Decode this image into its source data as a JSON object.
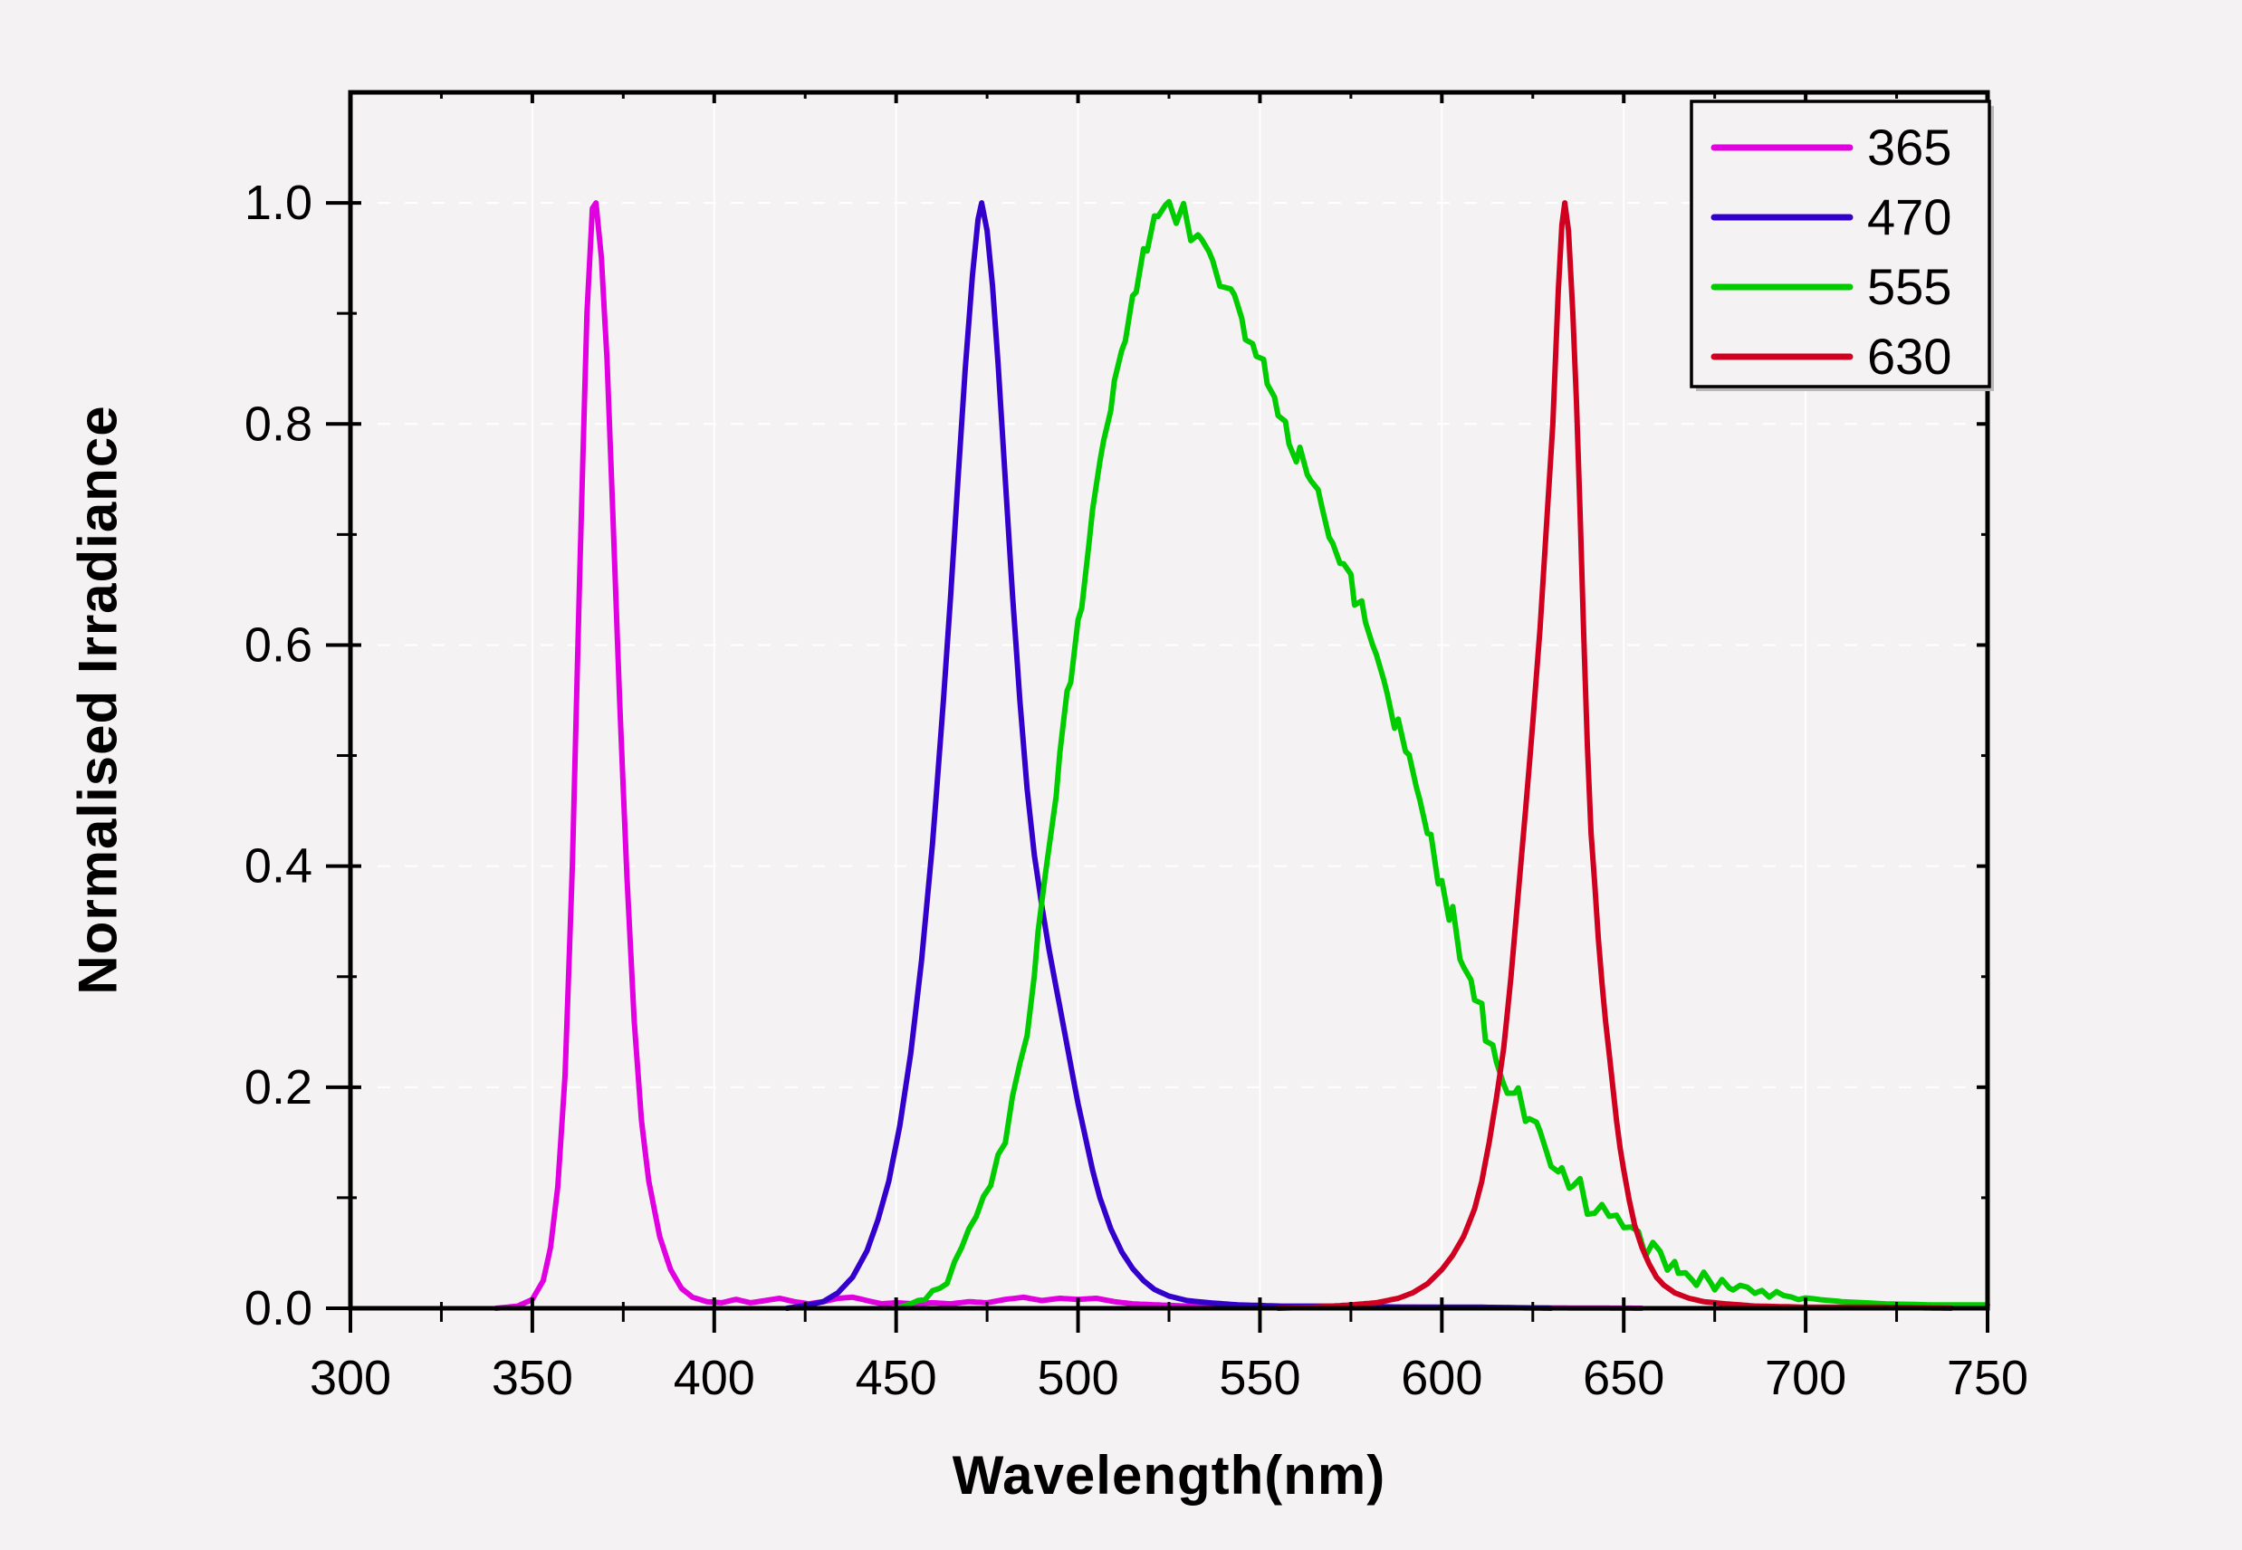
{
  "chart_data": {
    "type": "line",
    "title": "",
    "xlabel": "Wavelength(nm)",
    "ylabel": "Normalised Irradiance",
    "xlim": [
      300,
      750
    ],
    "ylim": [
      0,
      1.1
    ],
    "x_ticks": [
      300,
      350,
      400,
      450,
      500,
      550,
      600,
      650,
      700,
      750
    ],
    "x_minor_step": 25,
    "y_ticks": [
      "0.0",
      "0.2",
      "0.4",
      "0.6",
      "0.8",
      "1.0"
    ],
    "y_tick_values": [
      0.0,
      0.2,
      0.4,
      0.6,
      0.8,
      1.0
    ],
    "y_minor_step": 0.1,
    "background_color": "#f4f2f3",
    "frame_color": "#000000",
    "grid": {
      "vertical": "solid",
      "horizontal": "dashed",
      "color": "#ffffff"
    },
    "legend": {
      "position": "top-right",
      "entries": [
        {
          "label": "365",
          "color": "#e000e0"
        },
        {
          "label": "470",
          "color": "#3300cc"
        },
        {
          "label": "555",
          "color": "#00cc00"
        },
        {
          "label": "630",
          "color": "#d00020"
        }
      ]
    },
    "series": [
      {
        "name": "365",
        "color": "#e000e0",
        "width": 6,
        "jitter": 0,
        "points": [
          [
            340,
            0
          ],
          [
            346,
            0.002
          ],
          [
            350,
            0.008
          ],
          [
            353,
            0.025
          ],
          [
            355,
            0.055
          ],
          [
            357,
            0.11
          ],
          [
            359,
            0.21
          ],
          [
            361,
            0.4
          ],
          [
            363,
            0.66
          ],
          [
            365,
            0.9
          ],
          [
            366.5,
            0.995
          ],
          [
            367.5,
            1.0
          ],
          [
            369,
            0.95
          ],
          [
            370.5,
            0.86
          ],
          [
            372,
            0.73
          ],
          [
            374,
            0.55
          ],
          [
            376,
            0.39
          ],
          [
            378,
            0.26
          ],
          [
            380,
            0.17
          ],
          [
            382,
            0.115
          ],
          [
            385,
            0.065
          ],
          [
            388,
            0.035
          ],
          [
            391,
            0.018
          ],
          [
            394,
            0.01
          ],
          [
            398,
            0.006
          ],
          [
            402,
            0.005
          ],
          [
            406,
            0.008
          ],
          [
            410,
            0.005
          ],
          [
            414,
            0.007
          ],
          [
            418,
            0.009
          ],
          [
            422,
            0.006
          ],
          [
            426,
            0.004
          ],
          [
            430,
            0.006
          ],
          [
            434,
            0.009
          ],
          [
            438,
            0.01
          ],
          [
            442,
            0.007
          ],
          [
            446,
            0.004
          ],
          [
            450,
            0.005
          ],
          [
            455,
            0.004
          ],
          [
            460,
            0.005
          ],
          [
            465,
            0.004
          ],
          [
            470,
            0.006
          ],
          [
            475,
            0.005
          ],
          [
            480,
            0.008
          ],
          [
            485,
            0.01
          ],
          [
            490,
            0.007
          ],
          [
            495,
            0.009
          ],
          [
            500,
            0.008
          ],
          [
            505,
            0.009
          ],
          [
            510,
            0.006
          ],
          [
            515,
            0.004
          ],
          [
            522,
            0.003
          ],
          [
            530,
            0.002
          ],
          [
            542,
            0.002
          ],
          [
            556,
            0.001
          ],
          [
            572,
            0.001
          ],
          [
            590,
            0.001
          ],
          [
            620,
            0.0005
          ],
          [
            655,
            0
          ]
        ]
      },
      {
        "name": "470",
        "color": "#3300cc",
        "width": 6,
        "jitter": 0,
        "points": [
          [
            420,
            0
          ],
          [
            426,
            0.003
          ],
          [
            430,
            0.006
          ],
          [
            434,
            0.014
          ],
          [
            438,
            0.028
          ],
          [
            442,
            0.052
          ],
          [
            445,
            0.08
          ],
          [
            448,
            0.115
          ],
          [
            451,
            0.165
          ],
          [
            454,
            0.23
          ],
          [
            457,
            0.315
          ],
          [
            460,
            0.42
          ],
          [
            463,
            0.55
          ],
          [
            465,
            0.645
          ],
          [
            467,
            0.75
          ],
          [
            469,
            0.85
          ],
          [
            471,
            0.935
          ],
          [
            472.5,
            0.985
          ],
          [
            473.5,
            1.0
          ],
          [
            475,
            0.975
          ],
          [
            476.5,
            0.925
          ],
          [
            478,
            0.855
          ],
          [
            480,
            0.75
          ],
          [
            482,
            0.645
          ],
          [
            484,
            0.55
          ],
          [
            486,
            0.47
          ],
          [
            488,
            0.41
          ],
          [
            490,
            0.365
          ],
          [
            492,
            0.325
          ],
          [
            494,
            0.29
          ],
          [
            496,
            0.255
          ],
          [
            498,
            0.22
          ],
          [
            500,
            0.185
          ],
          [
            502,
            0.155
          ],
          [
            504,
            0.125
          ],
          [
            506,
            0.1
          ],
          [
            509,
            0.072
          ],
          [
            512,
            0.051
          ],
          [
            515,
            0.036
          ],
          [
            518,
            0.025
          ],
          [
            521,
            0.017
          ],
          [
            525,
            0.011
          ],
          [
            530,
            0.007
          ],
          [
            536,
            0.005
          ],
          [
            544,
            0.003
          ],
          [
            556,
            0.002
          ],
          [
            572,
            0.002
          ],
          [
            590,
            0.001
          ],
          [
            610,
            0.001
          ],
          [
            630,
            0
          ]
        ]
      },
      {
        "name": "555",
        "color": "#00cc00",
        "width": 6,
        "jitter": 0.014,
        "points": [
          [
            450,
            0
          ],
          [
            454,
            0.004
          ],
          [
            458,
            0.01
          ],
          [
            462,
            0.02
          ],
          [
            466,
            0.038
          ],
          [
            470,
            0.062
          ],
          [
            474,
            0.095
          ],
          [
            478,
            0.13
          ],
          [
            482,
            0.185
          ],
          [
            486,
            0.26
          ],
          [
            489,
            0.33
          ],
          [
            492,
            0.42
          ],
          [
            495,
            0.5
          ],
          [
            498,
            0.575
          ],
          [
            501,
            0.645
          ],
          [
            504,
            0.715
          ],
          [
            507,
            0.775
          ],
          [
            510,
            0.835
          ],
          [
            513,
            0.885
          ],
          [
            516,
            0.93
          ],
          [
            519,
            0.97
          ],
          [
            522,
            0.995
          ],
          [
            525,
            1.0
          ],
          [
            527,
            0.985
          ],
          [
            529,
            0.995
          ],
          [
            531,
            0.975
          ],
          [
            534,
            0.965
          ],
          [
            537,
            0.945
          ],
          [
            540,
            0.925
          ],
          [
            543,
            0.915
          ],
          [
            546,
            0.89
          ],
          [
            549,
            0.865
          ],
          [
            552,
            0.845
          ],
          [
            555,
            0.82
          ],
          [
            558,
            0.79
          ],
          [
            561,
            0.77
          ],
          [
            564,
            0.745
          ],
          [
            567,
            0.72
          ],
          [
            570,
            0.7
          ],
          [
            573,
            0.675
          ],
          [
            576,
            0.65
          ],
          [
            579,
            0.625
          ],
          [
            582,
            0.6
          ],
          [
            585,
            0.565
          ],
          [
            588,
            0.525
          ],
          [
            591,
            0.49
          ],
          [
            594,
            0.455
          ],
          [
            597,
            0.42
          ],
          [
            600,
            0.385
          ],
          [
            603,
            0.35
          ],
          [
            606,
            0.315
          ],
          [
            609,
            0.285
          ],
          [
            612,
            0.255
          ],
          [
            615,
            0.225
          ],
          [
            618,
            0.205
          ],
          [
            621,
            0.19
          ],
          [
            624,
            0.175
          ],
          [
            627,
            0.158
          ],
          [
            630,
            0.142
          ],
          [
            633,
            0.125
          ],
          [
            636,
            0.112
          ],
          [
            640,
            0.098
          ],
          [
            644,
            0.085
          ],
          [
            648,
            0.073
          ],
          [
            652,
            0.062
          ],
          [
            656,
            0.053
          ],
          [
            660,
            0.044
          ],
          [
            665,
            0.035
          ],
          [
            670,
            0.028
          ],
          [
            675,
            0.023
          ],
          [
            680,
            0.019
          ],
          [
            686,
            0.015
          ],
          [
            692,
            0.012
          ],
          [
            700,
            0.009
          ],
          [
            710,
            0.006
          ],
          [
            722,
            0.004
          ],
          [
            736,
            0.003
          ],
          [
            750,
            0.003
          ]
        ]
      },
      {
        "name": "630",
        "color": "#d00020",
        "width": 6,
        "jitter": 0,
        "points": [
          [
            555,
            0
          ],
          [
            565,
            0.001
          ],
          [
            575,
            0.003
          ],
          [
            582,
            0.005
          ],
          [
            588,
            0.009
          ],
          [
            592,
            0.014
          ],
          [
            596,
            0.022
          ],
          [
            600,
            0.035
          ],
          [
            603,
            0.048
          ],
          [
            606,
            0.065
          ],
          [
            609,
            0.09
          ],
          [
            611,
            0.115
          ],
          [
            613,
            0.15
          ],
          [
            615,
            0.19
          ],
          [
            617,
            0.235
          ],
          [
            619,
            0.3
          ],
          [
            621,
            0.375
          ],
          [
            623,
            0.45
          ],
          [
            625,
            0.53
          ],
          [
            627,
            0.615
          ],
          [
            629,
            0.72
          ],
          [
            630.5,
            0.8
          ],
          [
            632,
            0.92
          ],
          [
            633,
            0.98
          ],
          [
            633.8,
            1.0
          ],
          [
            634.8,
            0.975
          ],
          [
            636,
            0.9
          ],
          [
            637,
            0.82
          ],
          [
            638,
            0.72
          ],
          [
            639,
            0.61
          ],
          [
            640,
            0.51
          ],
          [
            641,
            0.43
          ],
          [
            642,
            0.385
          ],
          [
            643,
            0.335
          ],
          [
            644,
            0.295
          ],
          [
            645,
            0.26
          ],
          [
            646,
            0.23
          ],
          [
            647,
            0.2
          ],
          [
            648,
            0.17
          ],
          [
            649,
            0.145
          ],
          [
            650,
            0.125
          ],
          [
            651.5,
            0.098
          ],
          [
            653,
            0.075
          ],
          [
            655,
            0.055
          ],
          [
            657,
            0.04
          ],
          [
            659,
            0.028
          ],
          [
            661,
            0.021
          ],
          [
            664,
            0.014
          ],
          [
            668,
            0.009
          ],
          [
            672,
            0.006
          ],
          [
            678,
            0.004
          ],
          [
            686,
            0.002
          ],
          [
            700,
            0.001
          ],
          [
            720,
            0.001
          ],
          [
            740,
            0
          ]
        ]
      }
    ]
  }
}
